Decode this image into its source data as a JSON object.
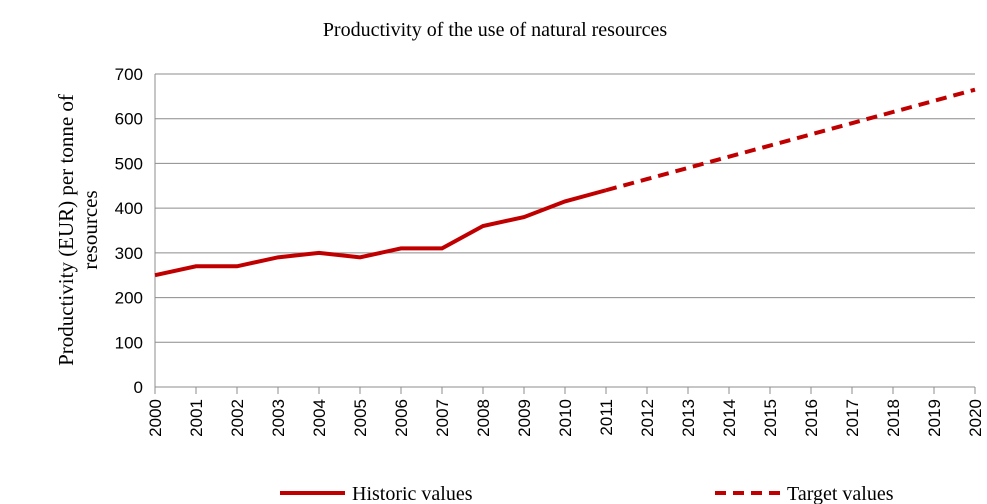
{
  "chart_data": {
    "type": "line",
    "title": "Productivity of the use of natural resources",
    "y_label": "Productivity (EUR) per tonne of resources",
    "categories": [
      "2000",
      "2001",
      "2002",
      "2003",
      "2004",
      "2005",
      "2006",
      "2007",
      "2008",
      "2009",
      "2010",
      "2011",
      "2012",
      "2013",
      "2014",
      "2015",
      "2016",
      "2017",
      "2018",
      "2019",
      "2020"
    ],
    "series": [
      {
        "name": "Historic values",
        "color": "#c00000",
        "dashed": false,
        "values": [
          250,
          270,
          270,
          290,
          300,
          290,
          310,
          310,
          360,
          380,
          415,
          440,
          null,
          null,
          null,
          null,
          null,
          null,
          null,
          null,
          null
        ]
      },
      {
        "name": "Target values",
        "color": "#c00000",
        "dashed": true,
        "values": [
          null,
          null,
          null,
          null,
          null,
          null,
          null,
          null,
          null,
          null,
          null,
          440,
          465,
          490,
          515,
          540,
          565,
          590,
          615,
          640,
          665
        ]
      }
    ],
    "ylim": [
      0,
      700
    ],
    "yticks": [
      0,
      100,
      200,
      300,
      400,
      500,
      600,
      700
    ],
    "grid": true,
    "legend": "bottom"
  }
}
